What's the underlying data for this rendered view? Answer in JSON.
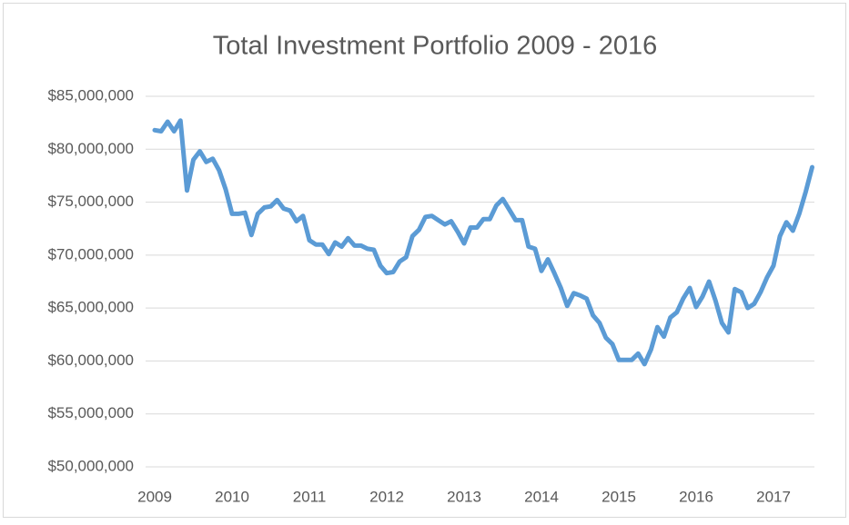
{
  "chart_data": {
    "type": "line",
    "title": "Total Investment Portfolio 2009 - 2016",
    "x": [
      2009,
      2009.083,
      2009.167,
      2009.25,
      2009.333,
      2009.417,
      2009.5,
      2009.583,
      2009.667,
      2009.75,
      2009.833,
      2009.917,
      2010,
      2010.083,
      2010.167,
      2010.25,
      2010.333,
      2010.417,
      2010.5,
      2010.583,
      2010.667,
      2010.75,
      2010.833,
      2010.917,
      2011,
      2011.083,
      2011.167,
      2011.25,
      2011.333,
      2011.417,
      2011.5,
      2011.583,
      2011.667,
      2011.75,
      2011.833,
      2011.917,
      2012,
      2012.083,
      2012.167,
      2012.25,
      2012.333,
      2012.417,
      2012.5,
      2012.583,
      2012.667,
      2012.75,
      2012.833,
      2012.917,
      2013,
      2013.083,
      2013.167,
      2013.25,
      2013.333,
      2013.417,
      2013.5,
      2013.583,
      2013.667,
      2013.75,
      2013.833,
      2013.917,
      2014,
      2014.083,
      2014.167,
      2014.25,
      2014.333,
      2014.417,
      2014.5,
      2014.583,
      2014.667,
      2014.75,
      2014.833,
      2014.917,
      2015,
      2015.083,
      2015.167,
      2015.25,
      2015.333,
      2015.417,
      2015.5,
      2015.583,
      2015.667,
      2015.75,
      2015.833,
      2015.917,
      2016,
      2016.083,
      2016.167,
      2016.25,
      2016.333,
      2016.417,
      2016.5,
      2016.583,
      2016.667,
      2016.75,
      2016.833,
      2016.917,
      2017,
      2017.083,
      2017.167,
      2017.25,
      2017.333,
      2017.417,
      2017.5
    ],
    "series": [
      {
        "color": "#5b9bd5",
        "values": [
          81800000,
          81700000,
          82600000,
          81700000,
          82700000,
          76100000,
          79000000,
          79800000,
          78800000,
          79100000,
          78000000,
          76200000,
          73900000,
          73900000,
          74000000,
          71900000,
          73900000,
          74500000,
          74600000,
          75200000,
          74400000,
          74200000,
          73200000,
          73700000,
          71400000,
          71000000,
          71000000,
          70100000,
          71200000,
          70800000,
          71600000,
          70900000,
          70900000,
          70600000,
          70500000,
          69000000,
          68300000,
          68400000,
          69400000,
          69800000,
          71800000,
          72400000,
          73600000,
          73700000,
          73300000,
          72900000,
          73200000,
          72200000,
          71100000,
          72600000,
          72600000,
          73400000,
          73400000,
          74700000,
          75300000,
          74300000,
          73300000,
          73300000,
          70800000,
          70600000,
          68500000,
          69600000,
          68300000,
          66900000,
          65200000,
          66400000,
          66200000,
          65900000,
          64300000,
          63600000,
          62200000,
          61600000,
          60100000,
          60100000,
          60100000,
          60700000,
          59700000,
          61100000,
          63200000,
          62300000,
          64100000,
          64600000,
          65900000,
          66900000,
          65100000,
          66100000,
          67500000,
          65700000,
          63600000,
          62700000,
          66800000,
          66500000,
          65000000,
          65400000,
          66500000,
          67900000,
          69000000,
          71800000,
          73100000,
          72300000,
          73900000,
          76000000,
          78300000
        ]
      }
    ],
    "xlim": [
      2008.882,
      2017.529
    ],
    "xticks": [
      2009,
      2010,
      2011,
      2012,
      2013,
      2014,
      2015,
      2016,
      2017
    ],
    "ylim": [
      50000000,
      85000000
    ],
    "yticks": [
      {
        "value": 50000000,
        "label": "$50,000,000"
      },
      {
        "value": 55000000,
        "label": "$55,000,000"
      },
      {
        "value": 60000000,
        "label": "$60,000,000"
      },
      {
        "value": 65000000,
        "label": "$65,000,000"
      },
      {
        "value": 70000000,
        "label": "$70,000,000"
      },
      {
        "value": 75000000,
        "label": "$75,000,000"
      },
      {
        "value": 80000000,
        "label": "$80,000,000"
      },
      {
        "value": 85000000,
        "label": "$85,000,000"
      }
    ],
    "grid": true
  }
}
